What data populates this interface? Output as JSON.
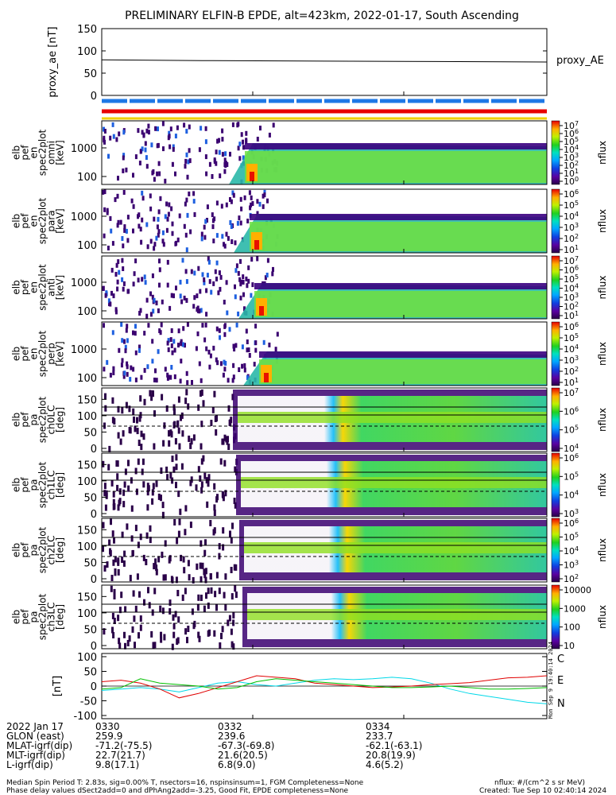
{
  "title": "PRELIMINARY ELFIN-B EPDE, alt=423km, 2022-01-17, South Ascending",
  "proxy_panel": {
    "ylabel": "proxy_ae\n[nT]",
    "yticks": [
      "150",
      "100",
      "50",
      "0"
    ],
    "legend": "proxy_AE"
  },
  "spec_panels": [
    {
      "ylabel": [
        "elb",
        "pef",
        "en",
        "spec2plot",
        "omni",
        "[keV]"
      ],
      "yticks": [
        "1000",
        "100"
      ],
      "cbar_ticks": [
        "10^7",
        "10^6",
        "10^5",
        "10^4",
        "10^3",
        "10^2",
        "10^1",
        "10^0"
      ],
      "cbar_label": "nflux"
    },
    {
      "ylabel": [
        "elb",
        "pef",
        "en",
        "spec2plot",
        "para",
        "[keV]"
      ],
      "yticks": [
        "1000",
        "100"
      ],
      "cbar_ticks": [
        "10^6",
        "10^5",
        "10^4",
        "10^3",
        "10^2",
        "10^1"
      ],
      "cbar_label": "nflux"
    },
    {
      "ylabel": [
        "elb",
        "pef",
        "en",
        "spec2plot",
        "anti",
        "[keV]"
      ],
      "yticks": [
        "1000",
        "100"
      ],
      "cbar_ticks": [
        "10^7",
        "10^6",
        "10^5",
        "10^4",
        "10^3",
        "10^2",
        "10^1"
      ],
      "cbar_label": "nflux"
    },
    {
      "ylabel": [
        "elb",
        "pef",
        "en",
        "spec2plot",
        "perp",
        "[keV]"
      ],
      "yticks": [
        "1000",
        "100"
      ],
      "cbar_ticks": [
        "10^6",
        "10^5",
        "10^4",
        "10^3",
        "10^2",
        "10^1"
      ],
      "cbar_label": "nflux"
    }
  ],
  "pa_panels": [
    {
      "ylabel": [
        "elb",
        "pef",
        "pa",
        "spec2plot",
        "ch0LC",
        "[deg]"
      ],
      "yticks": [
        "150",
        "100",
        "50",
        "0"
      ],
      "cbar_ticks": [
        "10^7",
        "10^6",
        "10^5",
        "10^4"
      ],
      "cbar_label": "nflux"
    },
    {
      "ylabel": [
        "elb",
        "pef",
        "pa",
        "spec2plot",
        "ch1LC",
        "[deg]"
      ],
      "yticks": [
        "150",
        "100",
        "50",
        "0"
      ],
      "cbar_ticks": [
        "10^6",
        "10^5",
        "10^4",
        "10^3"
      ],
      "cbar_label": "nflux"
    },
    {
      "ylabel": [
        "elb",
        "pef",
        "pa",
        "spec2plot",
        "ch2LC",
        "[deg]"
      ],
      "yticks": [
        "150",
        "100",
        "50",
        "0"
      ],
      "cbar_ticks": [
        "10^6",
        "10^5",
        "10^4",
        "10^3",
        "10^2"
      ],
      "cbar_label": "nflux"
    },
    {
      "ylabel": [
        "elb",
        "pef",
        "pa",
        "spec2plot",
        "ch3LC",
        "[deg]"
      ],
      "yticks": [
        "150",
        "100",
        "50",
        "0"
      ],
      "cbar_ticks": [
        "10000",
        "1000",
        "100",
        "10"
      ],
      "cbar_label": "nflux"
    }
  ],
  "mag_panel": {
    "ylabel": "[nT]",
    "yticks": [
      "100",
      "50",
      "0",
      "-50",
      "-100"
    ],
    "legend": [
      {
        "label": "C",
        "color": "#00d8e8"
      },
      {
        "label": "E",
        "color": "#e00000"
      },
      {
        "label": "N",
        "color": "#00c000"
      }
    ],
    "side_stamp": "Mon Sep  9 19:40:14 2024"
  },
  "footer": {
    "rows": [
      {
        "label": "2022 Jan 17",
        "v1": "0330",
        "v2": "0332",
        "v3": "0334"
      },
      {
        "label": "GLON (east)",
        "v1": "259.9",
        "v2": "239.6",
        "v3": "233.7"
      },
      {
        "label": "MLAT-igrf(dip)",
        "v1": "-71.2(-75.5)",
        "v2": "-67.3(-69.8)",
        "v3": "-62.1(-63.1)"
      },
      {
        "label": "MLT-igrf(dip)",
        "v1": "22.7(21.7)",
        "v2": "21.6(20.5)",
        "v3": "20.8(19.9)"
      },
      {
        "label": "L-igrf(dip)",
        "v1": "9.8(17.1)",
        "v2": "6.8(9.0)",
        "v3": "4.6(5.2)"
      }
    ],
    "note1": "Median Spin Period T: 2.83s, sig=0.00% T, nsectors=16, nspinsinsum=1, FGM Completeness=None",
    "note2": "Phase delay values dSect2add=0 and dPhAng2add=-3.25, Good Fit, EPDE completeness=None",
    "units": "nflux: #/(cm^2 s sr MeV)",
    "created": "Created: Tue Sep 10 02:40:14 2024"
  },
  "chart_data": {
    "type": "heatmap",
    "title": "PRELIMINARY ELFIN-B EPDE, alt=423km, 2022-01-17, South Ascending",
    "x_ticks": [
      "0330",
      "0332",
      "0334"
    ],
    "proxy_ae": {
      "ylim": [
        0,
        150
      ],
      "values": [
        80,
        78,
        77,
        76,
        75
      ]
    },
    "bars": [
      "blue-dashed",
      "red",
      "yellow"
    ],
    "mag": {
      "ylim": [
        -100,
        100
      ],
      "series": [
        {
          "name": "C",
          "color": "#00d8e8",
          "values": [
            -15,
            -10,
            -5,
            -10,
            -20,
            -5,
            10,
            15,
            5,
            0,
            10,
            20,
            25,
            22,
            25,
            30,
            25,
            10,
            -10,
            -25,
            -35,
            -45,
            -55,
            -60
          ]
        },
        {
          "name": "E",
          "color": "#e00000",
          "values": [
            15,
            20,
            10,
            -10,
            -40,
            -25,
            -5,
            15,
            35,
            30,
            25,
            10,
            5,
            0,
            -5,
            -3,
            0,
            5,
            8,
            12,
            20,
            28,
            30,
            35
          ]
        },
        {
          "name": "N",
          "color": "#00c000",
          "values": [
            -10,
            -5,
            25,
            10,
            5,
            0,
            -10,
            -5,
            15,
            25,
            20,
            15,
            10,
            5,
            0,
            -5,
            -5,
            -3,
            0,
            -5,
            -10,
            -10,
            -8,
            -5
          ]
        }
      ]
    }
  }
}
